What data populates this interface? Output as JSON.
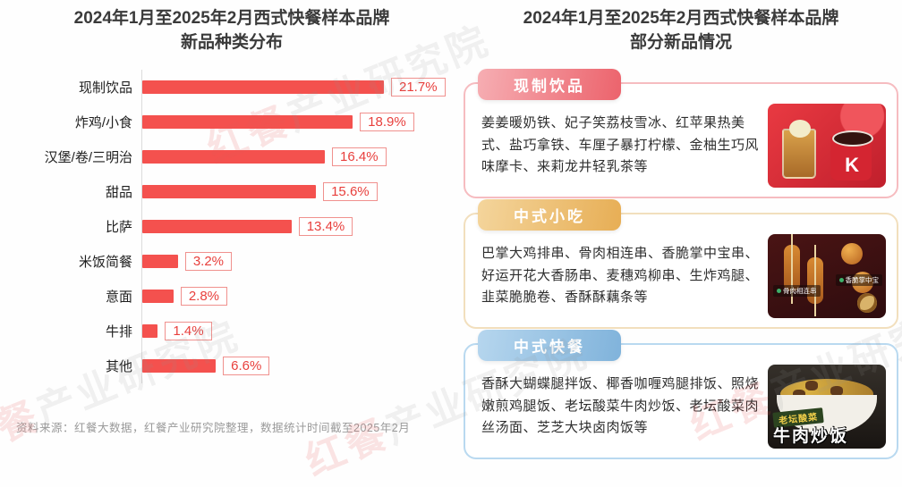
{
  "left": {
    "title_line1": "2024年1月至2025年2月西式快餐样本品牌",
    "title_line2": "新品种类分布"
  },
  "chart_data": {
    "type": "bar",
    "orientation": "horizontal",
    "title": "2024年1月至2025年2月西式快餐样本品牌新品种类分布",
    "categories": [
      "现制饮品",
      "炸鸡/小食",
      "汉堡/卷/三明治",
      "甜品",
      "比萨",
      "米饭简餐",
      "意面",
      "牛排",
      "其他"
    ],
    "values": [
      21.7,
      18.9,
      16.4,
      15.6,
      13.4,
      3.2,
      2.8,
      1.4,
      6.6
    ],
    "unit": "%",
    "xlim": [
      0,
      22
    ],
    "bar_color": "#f4514e",
    "value_label_color": "#e83f3c",
    "grid": false,
    "legend": false
  },
  "right": {
    "title_line1": "2024年1月至2025年2月西式快餐样本品牌",
    "title_line2": "部分新品情况",
    "panels": [
      {
        "tag": "现制饮品",
        "accent": "#ec636c",
        "text": "姜姜暖奶铁、妃子笑荔枝雪冰、红苹果热美式、盐巧拿铁、车厘子暴打柠檬、金柚生巧风味摩卡、来莉龙井轻乳茶等",
        "image_texts": [
          "K"
        ]
      },
      {
        "tag": "中式小吃",
        "accent": "#e7ae55",
        "text": "巴掌大鸡排串、骨肉相连串、香脆掌中宝串、好运开花大香肠串、麦穗鸡柳串、生炸鸡腿、韭菜脆脆卷、香酥酥藕条等",
        "image_texts": [
          "骨肉相连串",
          "香脆掌中宝"
        ]
      },
      {
        "tag": "中式快餐",
        "accent": "#80b3db",
        "text": "香酥大蝴蝶腿拌饭、椰香咖喱鸡腿排饭、照烧嫩煎鸡腿饭、老坛酸菜牛肉炒饭、老坛酸菜肉丝汤面、芝芝大块卤肉饭等",
        "image_texts": [
          "老坛酸菜",
          "牛肉炒饭"
        ]
      }
    ]
  },
  "footer": {
    "text": "资料来源：红餐大数据，红餐产业研究院整理，数据统计时间截至2025年2月"
  },
  "watermark": {
    "brand": "红餐",
    "division": "产业研究院"
  }
}
